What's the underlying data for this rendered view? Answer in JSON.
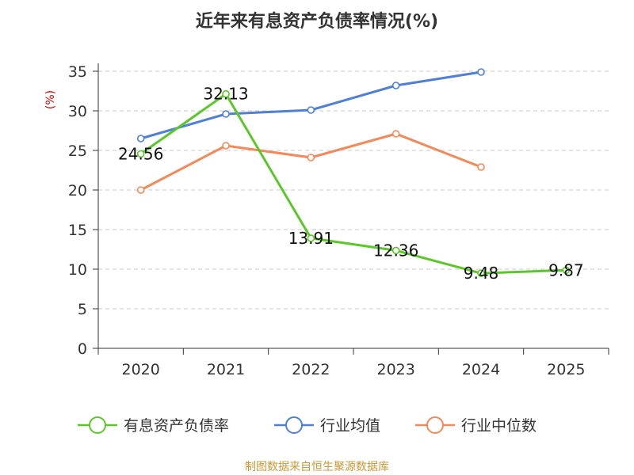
{
  "chart_data": {
    "type": "line",
    "title": "近年来有息资产负债率情况(%)",
    "ylabel": "(%)",
    "xlabel": "",
    "ylim": [
      0,
      35
    ],
    "yticks": [
      0,
      5,
      10,
      15,
      20,
      25,
      30,
      35
    ],
    "categories": [
      "2020",
      "2021",
      "2022",
      "2023",
      "2024",
      "2025"
    ],
    "series": [
      {
        "name": "有息资产负债率",
        "color": "#5cc72a",
        "values": [
          24.56,
          32.13,
          13.91,
          12.36,
          9.48,
          9.87
        ],
        "labels": [
          "24.56",
          "32.13",
          "13.91",
          "12.36",
          "9.48",
          "9.87"
        ]
      },
      {
        "name": "行业均值",
        "color": "#4f7fd6",
        "values": [
          26.5,
          29.6,
          30.1,
          33.2,
          34.9,
          null
        ]
      },
      {
        "name": "行业中位数",
        "color": "#f2895a",
        "values": [
          20.0,
          25.6,
          24.1,
          27.1,
          22.9,
          null
        ]
      }
    ],
    "grid": true,
    "legend_position": "bottom"
  },
  "source": "制图数据来自恒生聚源数据库"
}
